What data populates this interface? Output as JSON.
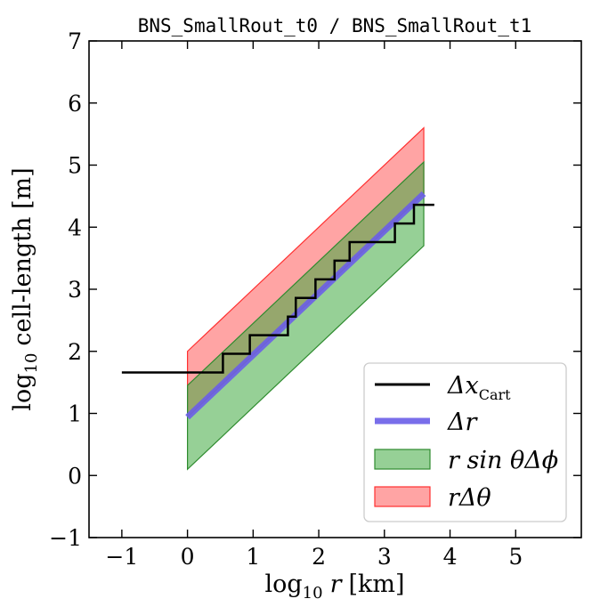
{
  "chart_data": {
    "type": "line",
    "title": "BNS_SmallRout_t0 / BNS_SmallRout_t1",
    "xlabel_prefix": "log",
    "xlabel_sub": "10",
    "xlabel_var": "r",
    "xlabel_unit": "[km]",
    "ylabel_prefix": "log",
    "ylabel_sub": "10",
    "ylabel_rest": "cell-length [m]",
    "xlim": [
      -1.5,
      6.0
    ],
    "ylim": [
      -1,
      7
    ],
    "xticks": [
      -1,
      0,
      1,
      2,
      3,
      4,
      5
    ],
    "yticks": [
      -1,
      0,
      1,
      2,
      3,
      4,
      5,
      6,
      7
    ],
    "xtick_labels": [
      "−1",
      "0",
      "1",
      "2",
      "3",
      "4",
      "5"
    ],
    "ytick_labels": [
      "−1",
      "0",
      "1",
      "2",
      "3",
      "4",
      "5",
      "6",
      "7"
    ],
    "legend_position": "lower-right",
    "series": [
      {
        "name": "rΔθ",
        "kind": "band",
        "color": "#ff5a5a",
        "edge": "#ff3030",
        "opacity": 0.55,
        "x": [
          0.0,
          3.6
        ],
        "lower": [
          0.94,
          4.54
        ],
        "upper": [
          2.0,
          5.6
        ]
      },
      {
        "name": "r sinθΔϕ",
        "kind": "band",
        "color": "#3faa3f",
        "edge": "#2e8b2e",
        "opacity": 0.55,
        "x": [
          0.0,
          3.6
        ],
        "lower": [
          0.1,
          3.7
        ],
        "upper": [
          1.45,
          5.05
        ]
      },
      {
        "name": "Δr",
        "kind": "line",
        "color": "#6a5ee8",
        "width": 7,
        "x": [
          0.0,
          3.6
        ],
        "y": [
          0.94,
          4.54
        ]
      },
      {
        "name": "Δx_Cart",
        "kind": "step",
        "color": "#000000",
        "width": 2.5,
        "x": [
          -1.0,
          0.54,
          0.54,
          0.95,
          0.95,
          1.53,
          1.53,
          1.65,
          1.65,
          1.95,
          1.95,
          2.24,
          2.24,
          2.47,
          2.47,
          3.16,
          3.16,
          3.45,
          3.45,
          3.76
        ],
        "y": [
          1.66,
          1.66,
          1.96,
          1.96,
          2.26,
          2.26,
          2.56,
          2.56,
          2.86,
          2.86,
          3.16,
          3.16,
          3.46,
          3.46,
          3.76,
          3.76,
          4.06,
          4.06,
          4.36,
          4.36
        ]
      }
    ],
    "legend": [
      {
        "label": "Δx",
        "sub": "Cart",
        "kind": "line",
        "color": "#000000"
      },
      {
        "label": "Δr",
        "sub": "",
        "kind": "line",
        "color": "#6a5ee8"
      },
      {
        "label": "r sin θΔϕ",
        "sub": "",
        "kind": "patch",
        "color": "#3faa3f"
      },
      {
        "label": "rΔθ",
        "sub": "",
        "kind": "patch",
        "color": "#ff5a5a"
      }
    ]
  }
}
